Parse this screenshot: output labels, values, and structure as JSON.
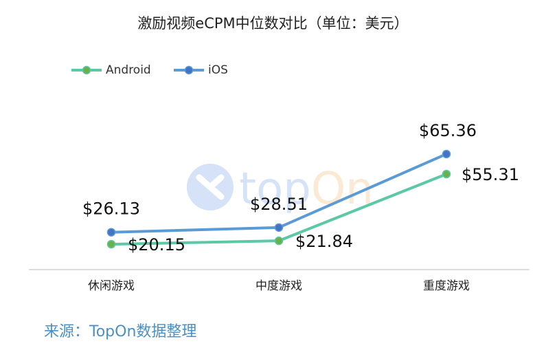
{
  "chart_data": {
    "type": "line",
    "title": "激励视频eCPM中位数对比（单位：美元）",
    "categories": [
      "休闲游戏",
      "中度游戏",
      "重度游戏"
    ],
    "series": [
      {
        "name": "Android",
        "values": [
          20.15,
          21.84,
          55.31
        ],
        "labels": [
          "$20.15",
          "$21.84",
          "$55.31"
        ],
        "color": "#5bc8a6",
        "marker_color": "#6ab04c"
      },
      {
        "name": "iOS",
        "values": [
          26.13,
          28.51,
          65.36
        ],
        "labels": [
          "$26.13",
          "$28.51",
          "$65.36"
        ],
        "color": "#5b9bd5",
        "marker_color": "#4472c4"
      }
    ],
    "ylim": [
      0,
      90
    ],
    "xlabel": "",
    "ylabel": "",
    "grid": false,
    "legend": "top-left"
  },
  "watermark": {
    "text": "topOn"
  },
  "source": "来源：TopOn数据整理"
}
